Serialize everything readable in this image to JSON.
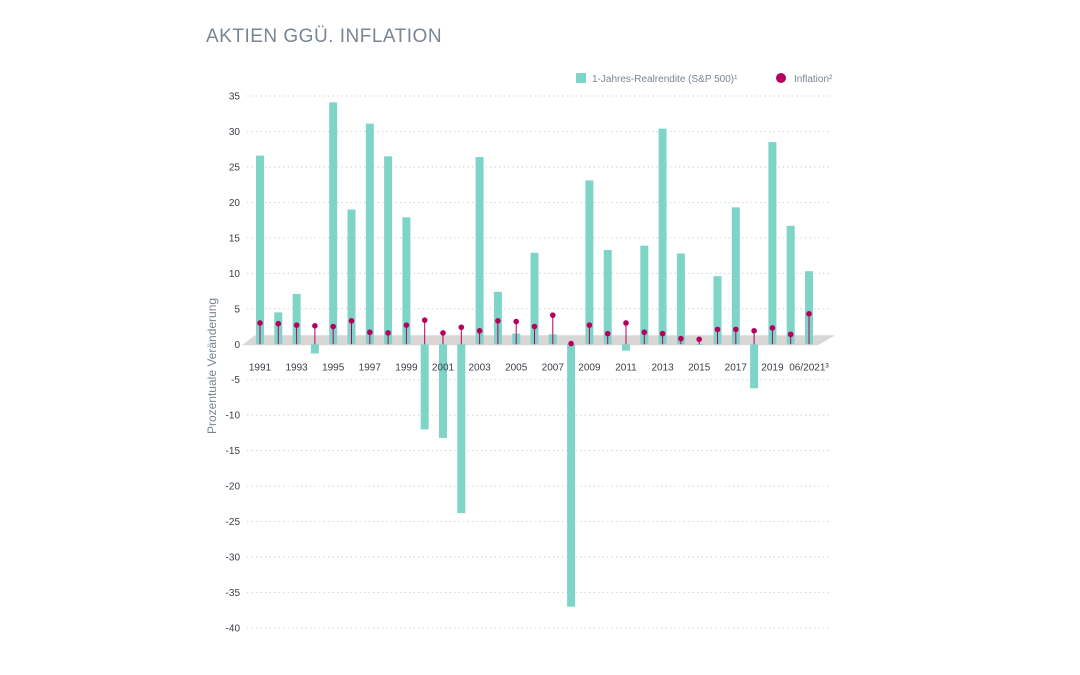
{
  "title": "AKTIEN GGÜ. INFLATION",
  "colors": {
    "bar": "#7fd4c8",
    "inflation": "#b5005e",
    "zero_band": "#d9d6d6",
    "grid": "#c9c9c9"
  },
  "chart_data": {
    "type": "bar",
    "title": "AKTIEN GGÜ. INFLATION",
    "xlabel": "",
    "ylabel": "Prozentuale Veränderung",
    "ylim": [
      -40,
      35
    ],
    "yticks": [
      35,
      30,
      25,
      20,
      15,
      10,
      5,
      0,
      -5,
      -10,
      -15,
      -20,
      -25,
      -30,
      -35,
      -40
    ],
    "grid": true,
    "legend_position": "top-right",
    "categories": [
      "1991",
      "1992",
      "1993",
      "1994",
      "1995",
      "1996",
      "1997",
      "1998",
      "1999",
      "2000",
      "2001",
      "2002",
      "2003",
      "2004",
      "2005",
      "2006",
      "2007",
      "2008",
      "2009",
      "2010",
      "2011",
      "2012",
      "2013",
      "2014",
      "2015",
      "2016",
      "2017",
      "2018",
      "2019",
      "2020",
      "06/2021"
    ],
    "category_labels": [
      "1991",
      "",
      "1993",
      "",
      "1995",
      "",
      "1997",
      "",
      "1999",
      "",
      "2001",
      "",
      "2003",
      "",
      "2005",
      "",
      "2007",
      "",
      "2009",
      "",
      "2011",
      "",
      "2013",
      "",
      "2015",
      "",
      "2017",
      "",
      "2019",
      "",
      "06/2021³"
    ],
    "series": [
      {
        "name": "1-Jahres-Realrendite (S&P 500)¹",
        "kind": "bar",
        "values": [
          26.6,
          4.5,
          7.1,
          -1.3,
          34.1,
          19.0,
          31.1,
          26.5,
          17.9,
          -12.0,
          -13.2,
          -23.8,
          26.4,
          7.4,
          1.5,
          12.9,
          1.4,
          -37.0,
          23.1,
          13.3,
          -0.9,
          13.9,
          30.4,
          12.8,
          0.0,
          9.6,
          19.3,
          -6.2,
          28.5,
          16.7,
          10.3
        ]
      },
      {
        "name": "Inflation²",
        "kind": "lollipop",
        "values": [
          3.0,
          2.9,
          2.7,
          2.6,
          2.5,
          3.3,
          1.7,
          1.6,
          2.7,
          3.4,
          1.6,
          2.4,
          1.9,
          3.3,
          3.2,
          2.5,
          4.1,
          0.1,
          2.7,
          1.5,
          3.0,
          1.7,
          1.5,
          0.8,
          0.7,
          2.1,
          2.1,
          1.9,
          2.3,
          1.4,
          4.3
        ]
      }
    ]
  }
}
